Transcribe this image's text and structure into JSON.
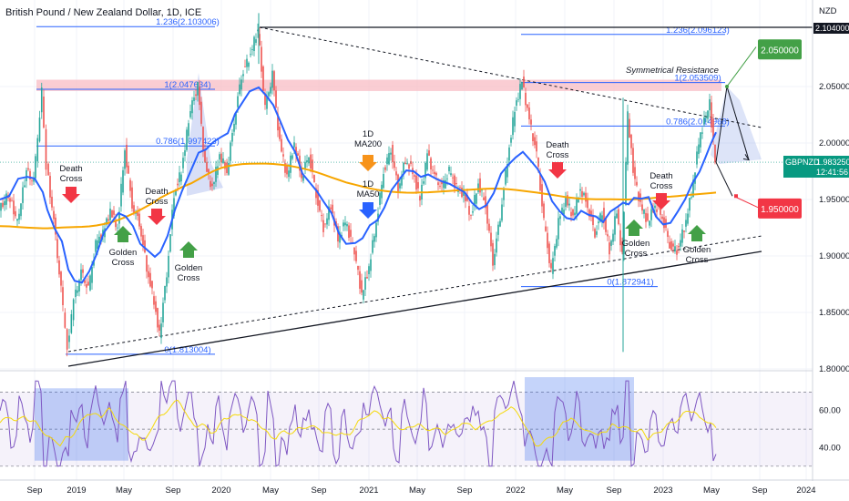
{
  "chart_data": {
    "type": "line",
    "title": "British Pound / New Zealand Dollar, 1D, ICE",
    "currency": "NZD",
    "symbol": "GBPNZD",
    "last_price": "1.983250",
    "countdown": "12:41:56",
    "ylim": [
      1.79,
      2.115
    ],
    "y_ticks": [
      "1.800000",
      "1.850000",
      "1.900000",
      "1.950000",
      "2.000000",
      "2.050000"
    ],
    "y_tick_values": [
      1.8,
      1.85,
      1.9,
      1.95,
      2.0,
      2.05
    ],
    "top_value": "2.104000",
    "x_ticks": [
      "Sep",
      "2019",
      "May",
      "Sep",
      "2020",
      "May",
      "Sep",
      "2021",
      "May",
      "Sep",
      "2022",
      "May",
      "Sep",
      "2023",
      "May",
      "Sep",
      "2024"
    ],
    "fib_left": [
      {
        "label": "1.236(2.103006)",
        "value": 2.103
      },
      {
        "label": "1(2.047634)",
        "value": 2.0476
      },
      {
        "label": "0.786(1.997423)",
        "value": 1.9974
      },
      {
        "label": "0(1.813004)",
        "value": 1.813
      }
    ],
    "fib_right": [
      {
        "label": "1.236(2.096123)",
        "value": 2.0961
      },
      {
        "label": "1(2.053509)",
        "value": 2.0535
      },
      {
        "label": "0.786(2.014968)",
        "value": 2.015
      },
      {
        "label": "0(1.872941)",
        "value": 1.8729
      }
    ],
    "resistance_label": "Symmetrical Resistance",
    "resistance_zone": [
      2.046,
      2.056
    ],
    "targets": [
      {
        "label": "2.050000",
        "value": 2.05,
        "color": "#43a047"
      },
      {
        "label": "1.950000",
        "value": 1.95,
        "color": "#f23645"
      }
    ],
    "annotations": {
      "death_cross": "Death Cross",
      "golden_cross": "Golden Cross",
      "ma200": "1D MA200",
      "ma50": "1D MA50"
    },
    "series": [
      {
        "name": "MA50",
        "color": "#2962ff"
      },
      {
        "name": "MA200",
        "color": "#f7a600"
      }
    ],
    "rsi": {
      "ticks": [
        "60.00",
        "40.00"
      ],
      "tick_values": [
        60,
        40
      ],
      "range": [
        25,
        80
      ]
    },
    "colors": {
      "price": "#089981",
      "up": "#26a69a",
      "down": "#ef5350",
      "ma50": "#2962ff",
      "ma200": "#f7a600",
      "rsi": "#7e57c2",
      "rsi_ma": "#f5d90a",
      "fib": "#2962ff",
      "resistance": "#f8bcc4"
    }
  }
}
